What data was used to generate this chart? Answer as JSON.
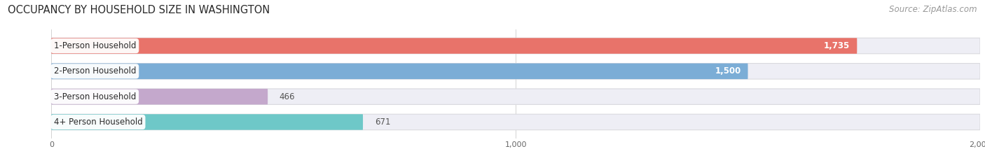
{
  "title": "OCCUPANCY BY HOUSEHOLD SIZE IN WASHINGTON",
  "source": "Source: ZipAtlas.com",
  "categories": [
    "1-Person Household",
    "2-Person Household",
    "3-Person Household",
    "4+ Person Household"
  ],
  "values": [
    1735,
    1500,
    466,
    671
  ],
  "bar_colors": [
    "#E8736A",
    "#7BADD6",
    "#C4A8CC",
    "#6EC8C8"
  ],
  "bar_bg_color": "#EEEEF5",
  "bar_border_color": "#DADADF",
  "xlim": [
    -100,
    2000
  ],
  "xmin": 0,
  "xmax": 2000,
  "xticks": [
    0,
    1000,
    2000
  ],
  "background_color": "#FFFFFF",
  "title_fontsize": 10.5,
  "label_fontsize": 8.5,
  "value_fontsize": 8.5,
  "source_fontsize": 8.5,
  "bar_height": 0.62,
  "value_threshold": 900
}
